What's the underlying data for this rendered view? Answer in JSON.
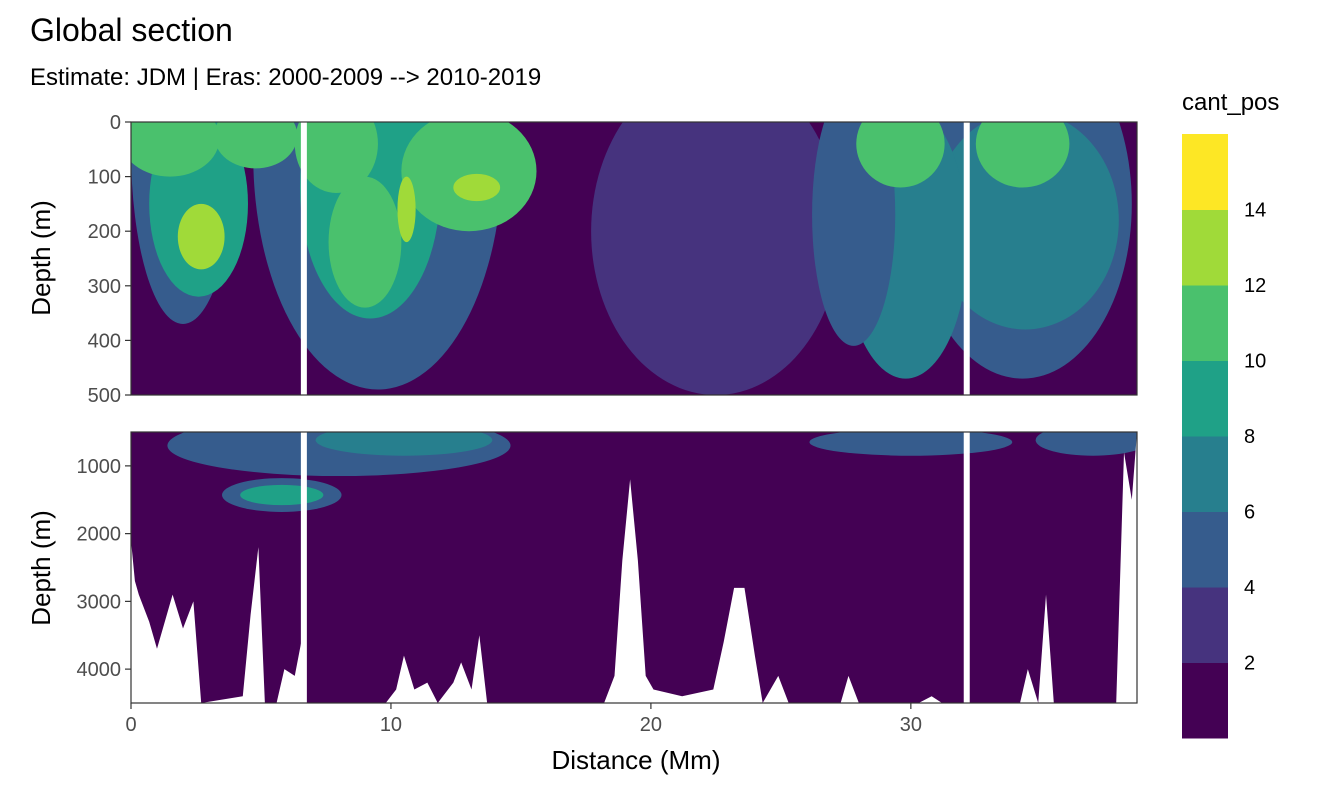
{
  "chart_data": {
    "type": "heatmap",
    "subtype": "filled-contour-section",
    "title": "Global section",
    "subtitle": "Estimate: JDM  | Eras: 2000-2009 --> 2010-2019",
    "xlabel": "Distance (Mm)",
    "x_range": [
      0,
      38.7
    ],
    "x_ticks": [
      0,
      10,
      20,
      30
    ],
    "x_tick_labels": [
      "0",
      "10",
      "20",
      "30"
    ],
    "panels": [
      {
        "name": "upper",
        "ylabel": "Depth (m)",
        "y_range": [
          0,
          500
        ],
        "y_reversed": true,
        "y_ticks": [
          0,
          100,
          200,
          300,
          400,
          500
        ],
        "y_tick_labels": [
          "0",
          "100",
          "200",
          "300",
          "400",
          "500"
        ]
      },
      {
        "name": "lower",
        "ylabel": "Depth (m)",
        "y_range": [
          500,
          4500
        ],
        "y_reversed": true,
        "y_ticks": [
          1000,
          2000,
          3000,
          4000
        ],
        "y_tick_labels": [
          "1000",
          "2000",
          "3000",
          "4000"
        ]
      }
    ],
    "legend": {
      "title": "cant_pos",
      "position": "right",
      "breaks": [
        2,
        4,
        6,
        8,
        10,
        12,
        14
      ],
      "break_labels": [
        "2",
        "4",
        "6",
        "8",
        "10",
        "12",
        "14"
      ],
      "bin_colors": [
        "#440154",
        "#46337E",
        "#365C8D",
        "#277F8E",
        "#1FA187",
        "#4AC16D",
        "#A0DA39",
        "#FDE725"
      ]
    },
    "gaps_x": [
      6.65,
      32.15
    ],
    "surface_fields": [
      {
        "center": [
          2.7,
          210
        ],
        "radius": [
          0.9,
          60
        ],
        "level": 6
      },
      {
        "center": [
          2.6,
          150
        ],
        "radius": [
          1.9,
          170
        ],
        "level": 4
      },
      {
        "center": [
          1.5,
          30
        ],
        "radius": [
          1.9,
          70
        ],
        "level": 5
      },
      {
        "center": [
          4.8,
          25
        ],
        "radius": [
          1.6,
          60
        ],
        "level": 5
      },
      {
        "center": [
          2.0,
          50
        ],
        "radius": [
          2.0,
          320
        ],
        "level": 2
      },
      {
        "center": [
          9.0,
          220
        ],
        "radius": [
          1.4,
          120
        ],
        "level": 5
      },
      {
        "center": [
          9.2,
          120
        ],
        "radius": [
          2.7,
          240
        ],
        "level": 4
      },
      {
        "center": [
          10.6,
          160
        ],
        "radius": [
          0.35,
          60
        ],
        "level": 6
      },
      {
        "center": [
          13.3,
          120
        ],
        "radius": [
          0.9,
          25
        ],
        "level": 6
      },
      {
        "center": [
          13.0,
          90
        ],
        "radius": [
          2.6,
          110
        ],
        "level": 5
      },
      {
        "center": [
          7.9,
          40
        ],
        "radius": [
          1.6,
          90
        ],
        "level": 5
      },
      {
        "center": [
          9.5,
          60
        ],
        "radius": [
          4.8,
          430
        ],
        "level": 2
      },
      {
        "center": [
          22.5,
          200
        ],
        "radius": [
          4.8,
          300
        ],
        "level": 1
      },
      {
        "center": [
          27.8,
          170
        ],
        "radius": [
          1.6,
          240
        ],
        "level": 2
      },
      {
        "center": [
          29.6,
          40
        ],
        "radius": [
          1.7,
          80
        ],
        "level": 5
      },
      {
        "center": [
          29.8,
          220
        ],
        "radius": [
          2.4,
          250
        ],
        "level": 3
      },
      {
        "center": [
          34.3,
          40
        ],
        "radius": [
          1.8,
          80
        ],
        "level": 5
      },
      {
        "center": [
          34.4,
          180
        ],
        "radius": [
          3.6,
          200
        ],
        "level": 3
      },
      {
        "center": [
          34.3,
          150
        ],
        "radius": [
          4.2,
          320
        ],
        "level": 2
      }
    ],
    "deep_fields": [
      {
        "center": [
          5.8,
          1430
        ],
        "radius": [
          1.6,
          150
        ],
        "level": 4
      },
      {
        "center": [
          5.8,
          1430
        ],
        "radius": [
          2.3,
          250
        ],
        "level": 2
      },
      {
        "center": [
          8.0,
          700
        ],
        "radius": [
          6.6,
          450
        ],
        "level": 2
      },
      {
        "center": [
          10.5,
          620
        ],
        "radius": [
          3.4,
          230
        ],
        "level": 3
      },
      {
        "center": [
          30.0,
          650
        ],
        "radius": [
          3.9,
          200
        ],
        "level": 2
      },
      {
        "center": [
          37.0,
          620
        ],
        "radius": [
          2.2,
          230
        ],
        "level": 2
      }
    ],
    "bottom_profile": [
      {
        "x": 0.0,
        "depth": 2100
      },
      {
        "x": 0.15,
        "depth": 2700
      },
      {
        "x": 0.3,
        "depth": 2900
      },
      {
        "x": 0.7,
        "depth": 3300
      },
      {
        "x": 1.0,
        "depth": 3700
      },
      {
        "x": 1.3,
        "depth": 3300
      },
      {
        "x": 1.6,
        "depth": 2900
      },
      {
        "x": 2.0,
        "depth": 3400
      },
      {
        "x": 2.4,
        "depth": 3000
      },
      {
        "x": 2.7,
        "depth": 4500
      },
      {
        "x": 4.3,
        "depth": 4400
      },
      {
        "x": 4.6,
        "depth": 3200
      },
      {
        "x": 4.9,
        "depth": 2200
      },
      {
        "x": 5.15,
        "depth": 4500
      },
      {
        "x": 5.6,
        "depth": 4500
      },
      {
        "x": 5.9,
        "depth": 4000
      },
      {
        "x": 6.3,
        "depth": 4100
      },
      {
        "x": 6.6,
        "depth": 3500
      },
      {
        "x": 6.75,
        "depth": 4500
      },
      {
        "x": 9.8,
        "depth": 4500
      },
      {
        "x": 10.2,
        "depth": 4300
      },
      {
        "x": 10.5,
        "depth": 3800
      },
      {
        "x": 10.9,
        "depth": 4300
      },
      {
        "x": 11.4,
        "depth": 4200
      },
      {
        "x": 11.8,
        "depth": 4500
      },
      {
        "x": 12.4,
        "depth": 4200
      },
      {
        "x": 12.7,
        "depth": 3900
      },
      {
        "x": 13.1,
        "depth": 4300
      },
      {
        "x": 13.4,
        "depth": 3500
      },
      {
        "x": 13.7,
        "depth": 4500
      },
      {
        "x": 18.2,
        "depth": 4500
      },
      {
        "x": 18.6,
        "depth": 4100
      },
      {
        "x": 18.9,
        "depth": 2400
      },
      {
        "x": 19.2,
        "depth": 1200
      },
      {
        "x": 19.5,
        "depth": 2400
      },
      {
        "x": 19.8,
        "depth": 4100
      },
      {
        "x": 20.1,
        "depth": 4300
      },
      {
        "x": 21.2,
        "depth": 4400
      },
      {
        "x": 22.4,
        "depth": 4300
      },
      {
        "x": 22.8,
        "depth": 3600
      },
      {
        "x": 23.2,
        "depth": 2800
      },
      {
        "x": 23.6,
        "depth": 2800
      },
      {
        "x": 24.0,
        "depth": 3800
      },
      {
        "x": 24.3,
        "depth": 4500
      },
      {
        "x": 24.9,
        "depth": 4100
      },
      {
        "x": 25.3,
        "depth": 4500
      },
      {
        "x": 27.3,
        "depth": 4500
      },
      {
        "x": 27.6,
        "depth": 4100
      },
      {
        "x": 28.0,
        "depth": 4500
      },
      {
        "x": 30.3,
        "depth": 4500
      },
      {
        "x": 30.8,
        "depth": 4400
      },
      {
        "x": 31.2,
        "depth": 4500
      },
      {
        "x": 34.2,
        "depth": 4500
      },
      {
        "x": 34.5,
        "depth": 4000
      },
      {
        "x": 34.9,
        "depth": 4500
      },
      {
        "x": 35.2,
        "depth": 2900
      },
      {
        "x": 35.5,
        "depth": 4500
      },
      {
        "x": 37.9,
        "depth": 4500
      },
      {
        "x": 38.2,
        "depth": 800
      },
      {
        "x": 38.5,
        "depth": 1500
      },
      {
        "x": 38.7,
        "depth": 500
      }
    ]
  }
}
